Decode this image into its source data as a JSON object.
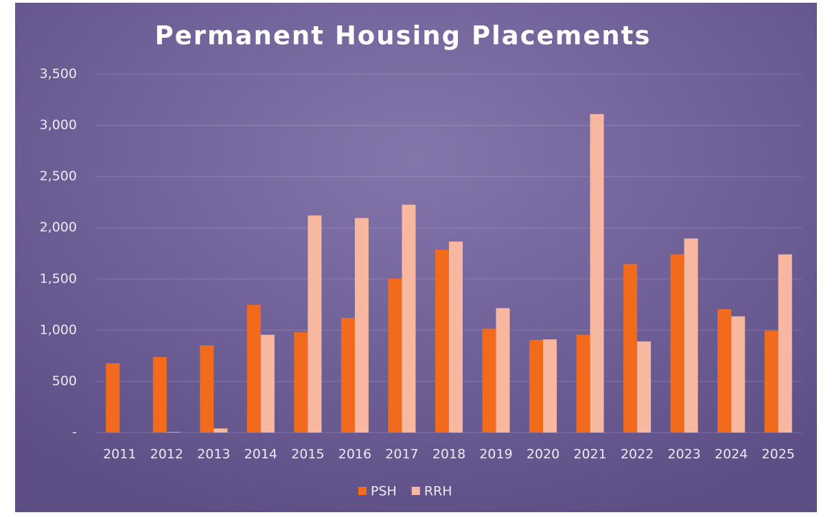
{
  "chart_data": {
    "type": "bar",
    "title": "Permanent Housing Placements",
    "categories": [
      "2011",
      "2012",
      "2013",
      "2014",
      "2015",
      "2016",
      "2017",
      "2018",
      "2019",
      "2020",
      "2021",
      "2022",
      "2023",
      "2024",
      "2025"
    ],
    "series": [
      {
        "name": "PSH",
        "color": "#f26a1b",
        "values": [
          677,
          738,
          852,
          1247,
          980,
          1120,
          1502,
          1784,
          1015,
          905,
          955,
          1645,
          1740,
          1205,
          995
        ]
      },
      {
        "name": "RRH",
        "color": "#f8b8a0",
        "values": [
          0,
          5,
          40,
          955,
          2120,
          2095,
          2225,
          1865,
          1215,
          910,
          3110,
          890,
          1895,
          1135,
          1740
        ]
      }
    ],
    "ylim": [
      0,
      3500
    ],
    "yticks": [
      {
        "value": 0,
        "label": "-"
      },
      500,
      {
        "value": 1000,
        "label": "1,000"
      },
      {
        "value": 1500,
        "label": "1,500"
      },
      {
        "value": 2000,
        "label": "2,000"
      },
      {
        "value": 2500,
        "label": "2,500"
      },
      {
        "value": 3000,
        "label": "3,000"
      },
      {
        "value": 3500,
        "label": "3,500"
      }
    ],
    "grid": true,
    "legend": "bottom"
  }
}
